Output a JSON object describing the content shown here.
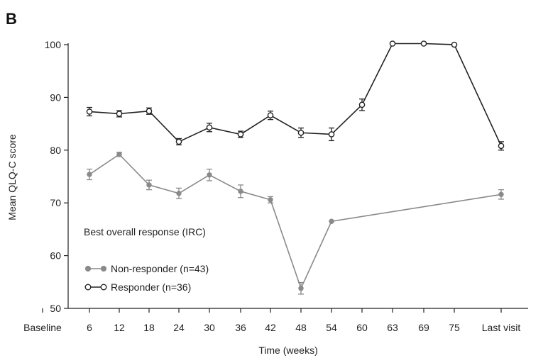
{
  "panel_label": "B",
  "chart_data": {
    "type": "line",
    "xlabel": "Time (weeks)",
    "ylabel": "Mean QLQ-C score",
    "categories": [
      "Baseline",
      "6",
      "12",
      "18",
      "24",
      "30",
      "36",
      "42",
      "48",
      "54",
      "60",
      "63",
      "69",
      "75",
      "Last visit"
    ],
    "ylim": [
      50,
      100
    ],
    "yticks": [
      50,
      60,
      70,
      80,
      90,
      100
    ],
    "grid": false,
    "legend": {
      "title": "Best overall response (IRC)",
      "placement": "bottom-left"
    },
    "series": [
      {
        "name": "Non-responder (n=43)",
        "color": "#8a8a8a",
        "marker": "filled-circle",
        "x": [
          "6",
          "12",
          "18",
          "24",
          "30",
          "36",
          "42",
          "48",
          "54",
          "Last visit"
        ],
        "y": [
          75.4,
          79.2,
          73.4,
          71.8,
          75.3,
          72.2,
          70.6,
          53.8,
          66.5,
          71.6
        ],
        "err": [
          1.0,
          0.4,
          0.9,
          1.0,
          1.1,
          1.2,
          0.6,
          1.1,
          0,
          0.9
        ]
      },
      {
        "name": "Responder (n=36)",
        "color": "#222222",
        "marker": "open-circle",
        "x": [
          "6",
          "12",
          "18",
          "24",
          "30",
          "36",
          "42",
          "48",
          "54",
          "60",
          "63",
          "69",
          "75",
          "Last visit"
        ],
        "y": [
          87.3,
          86.9,
          87.4,
          81.6,
          84.3,
          83.0,
          86.6,
          83.3,
          83.0,
          88.6,
          100.2,
          100.2,
          100.0,
          80.8
        ],
        "err": [
          0.8,
          0.6,
          0.6,
          0.6,
          0.8,
          0.6,
          0.8,
          0.9,
          1.2,
          1.1,
          0,
          0,
          0,
          0.8
        ]
      }
    ]
  }
}
